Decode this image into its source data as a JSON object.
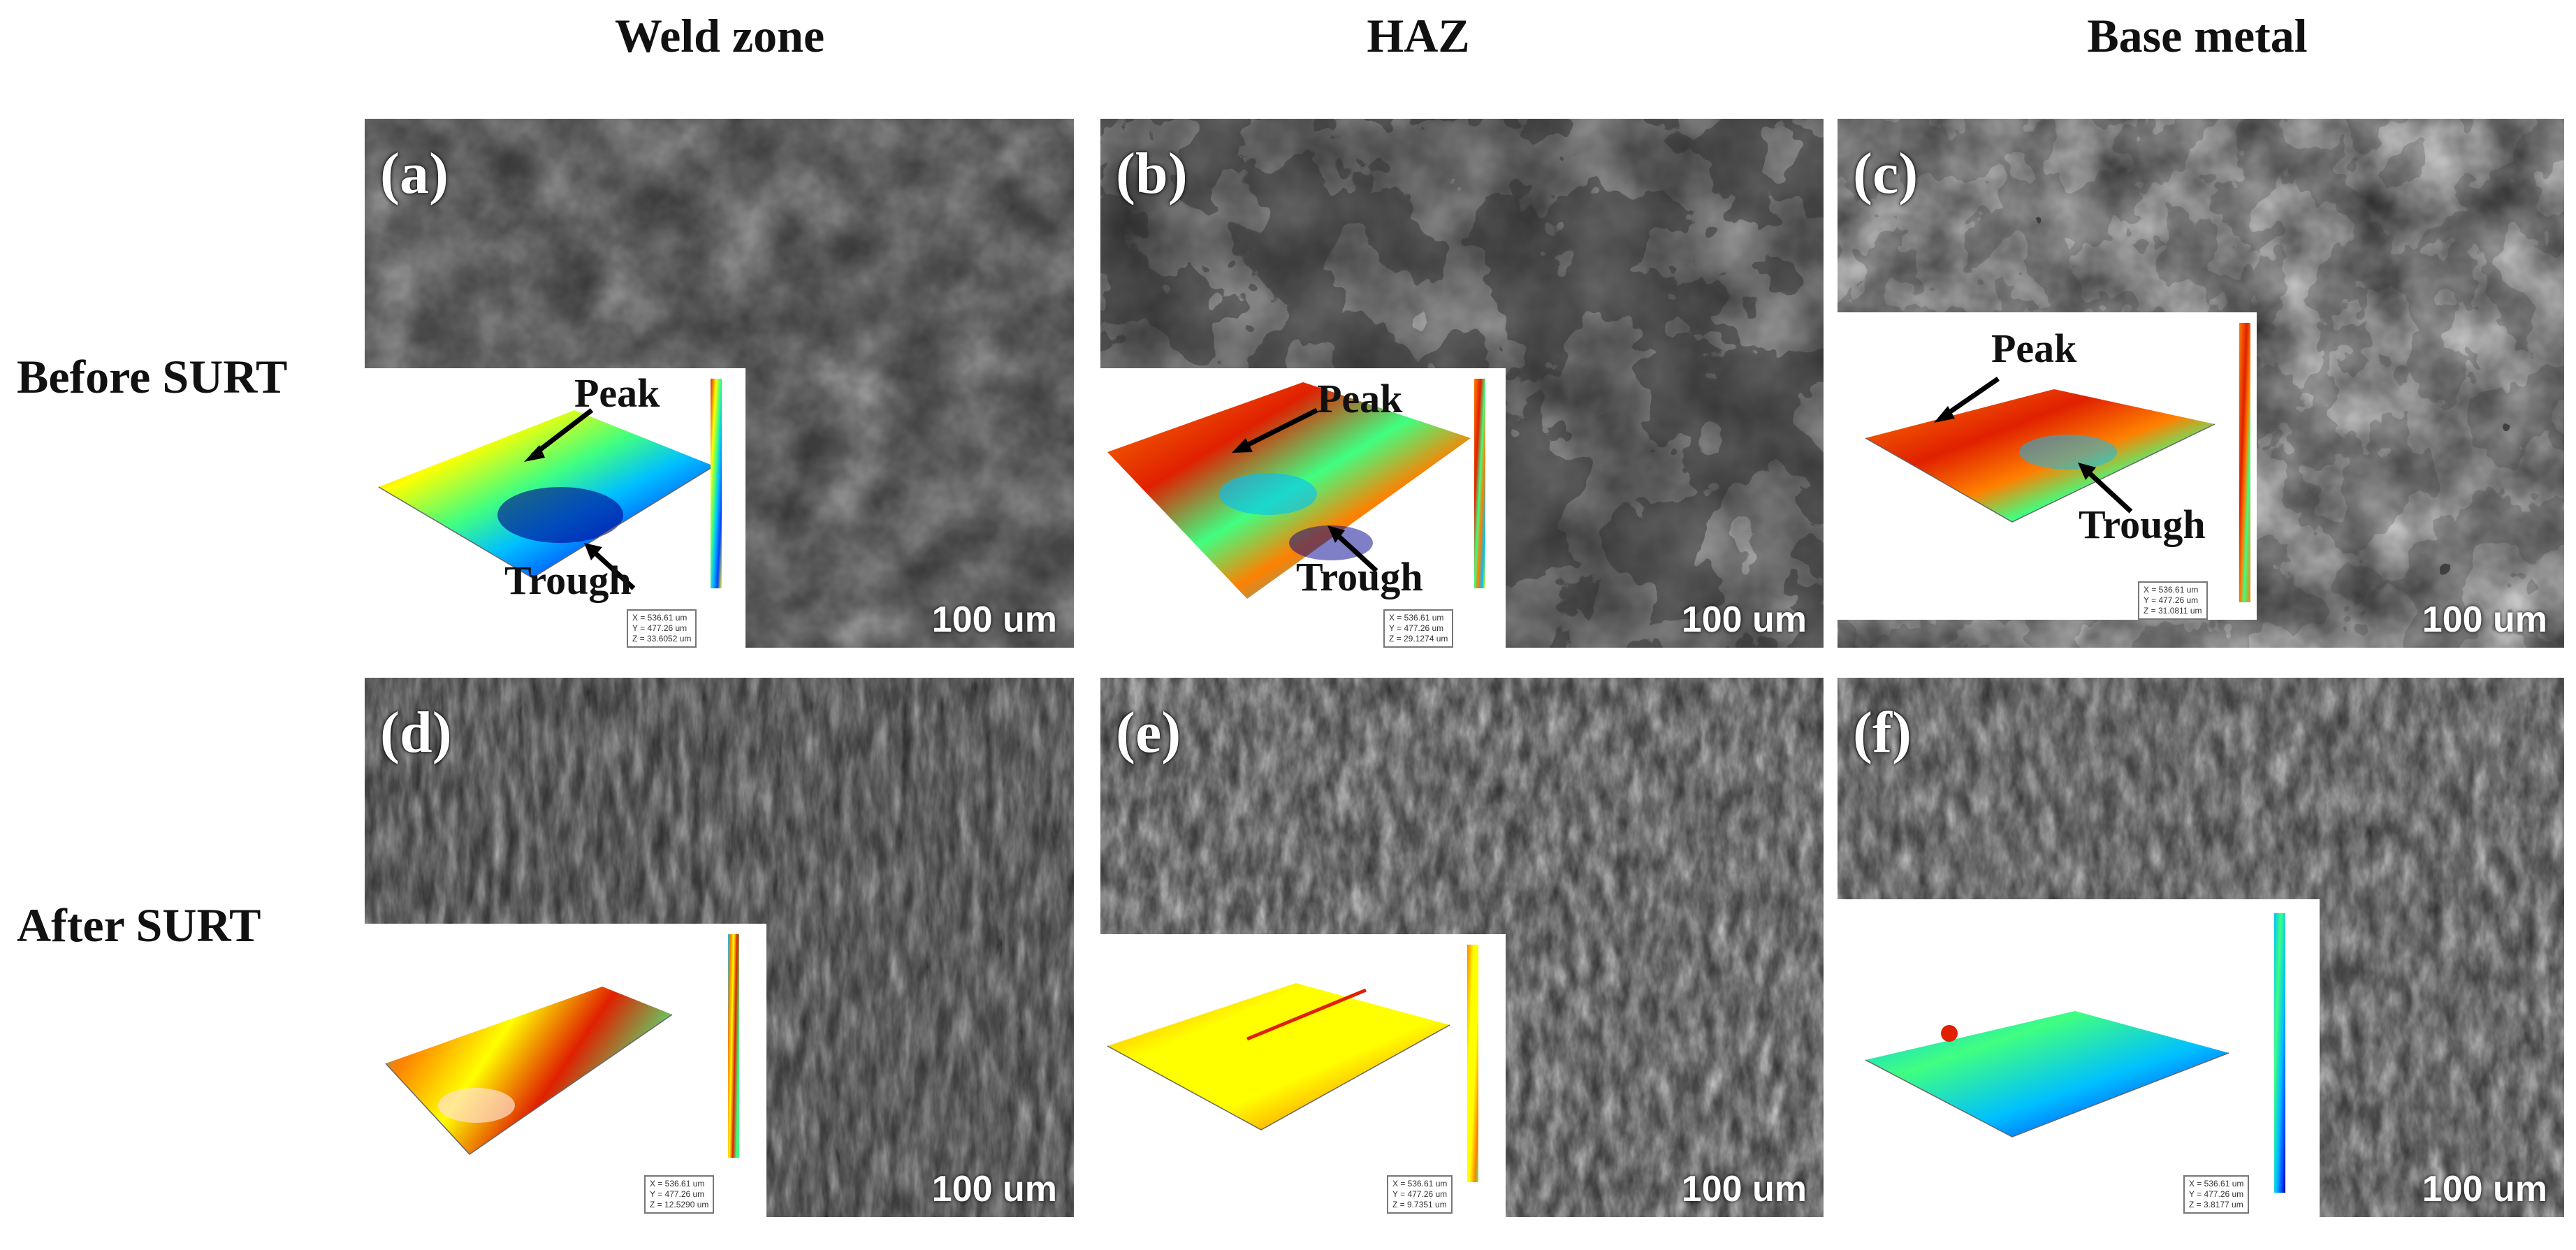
{
  "columns": [
    "Weld zone",
    "HAZ",
    "Base metal"
  ],
  "rows": [
    "Before SURT",
    "After SURT"
  ],
  "panels": [
    {
      "letter": "(a)",
      "scale": "100 um",
      "peak": "Peak",
      "trough": "Trough",
      "readout": [
        "X = 536.61 um",
        "Y = 477.26 um",
        "Z = 33.6052 um"
      ]
    },
    {
      "letter": "(b)",
      "scale": "100 um",
      "peak": "Peak",
      "trough": "Trough",
      "readout": [
        "X = 536.61 um",
        "Y = 477.26 um",
        "Z = 29.1274 um"
      ]
    },
    {
      "letter": "(c)",
      "scale": "100 um",
      "peak": "Peak",
      "trough": "Trough",
      "readout": [
        "X = 536.61 um",
        "Y = 477.26 um",
        "Z = 31.0811 um"
      ]
    },
    {
      "letter": "(d)",
      "scale": "100 um",
      "readout": [
        "X = 536.61 um",
        "Y = 477.26 um",
        "Z = 12.5290 um"
      ]
    },
    {
      "letter": "(e)",
      "scale": "100 um",
      "readout": [
        "X = 536.61 um",
        "Y = 477.26 um",
        "Z = 9.7351 um"
      ]
    },
    {
      "letter": "(f)",
      "scale": "100 um",
      "readout": [
        "X = 536.61 um",
        "Y = 477.26 um",
        "Z = 3.8177 um"
      ]
    }
  ],
  "colors": {
    "jet": [
      "#00008f",
      "#0040ff",
      "#00c0ff",
      "#40ff80",
      "#ffff00",
      "#ff8000",
      "#e02000"
    ],
    "arrow": "#000000"
  }
}
